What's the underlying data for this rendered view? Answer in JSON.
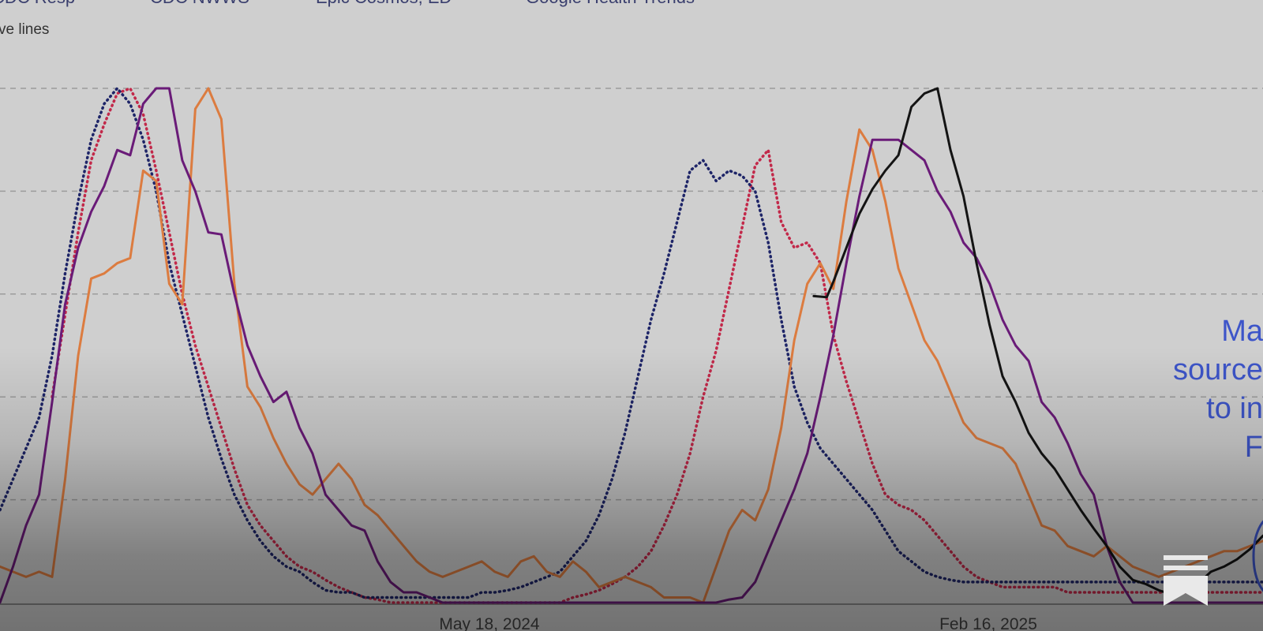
{
  "chart_data": {
    "type": "line",
    "legend": [
      "CDC Resp",
      "CDC NWWS",
      "Epic Cosmos, ED",
      "Google Health Trends"
    ],
    "subnote": "ve lines",
    "x_tick_labels": [
      "May 18, 2024",
      "Feb 16, 2025"
    ],
    "y_gridlines": [
      0,
      1,
      2,
      3,
      4,
      5
    ],
    "ylim": [
      0,
      5
    ],
    "xlim": [
      0,
      97
    ],
    "grid": true,
    "annotation_lines": [
      "Ma",
      "source",
      "to in",
      "F"
    ],
    "colors": {
      "black": "#141414",
      "purple": "#6a1b78",
      "orange": "#dc7c40",
      "dotted_red": "#c2294a",
      "dotted_navy": "#1e2568",
      "annotation": "#3d55c9"
    },
    "series": [
      {
        "color": "black",
        "style": "solid",
        "x": [
          62.5,
          63.5,
          64,
          65,
          66,
          67,
          68,
          69,
          70,
          71,
          72,
          73,
          74,
          75,
          76,
          77,
          78,
          79,
          80,
          81,
          82,
          83,
          84,
          85,
          86,
          87,
          88,
          89,
          90,
          91,
          92,
          93,
          94,
          95,
          96,
          97
        ],
        "y": [
          2.98,
          2.97,
          3.12,
          3.45,
          3.78,
          4.02,
          4.2,
          4.35,
          4.82,
          4.95,
          5.0,
          4.4,
          3.95,
          3.3,
          2.7,
          2.2,
          1.95,
          1.65,
          1.45,
          1.3,
          1.1,
          0.9,
          0.72,
          0.55,
          0.35,
          0.22,
          0.18,
          0.12,
          0.08,
          0.12,
          0.18,
          0.3,
          0.35,
          0.42,
          0.52,
          0.65
        ]
      },
      {
        "color": "purple",
        "style": "solid",
        "x": [
          0,
          1,
          2,
          3,
          4,
          5,
          6,
          7,
          8,
          9,
          10,
          11,
          12,
          13,
          14,
          15,
          16,
          17,
          18,
          19,
          20,
          21,
          22,
          23,
          24,
          25,
          26,
          27,
          28,
          29,
          30,
          31,
          32,
          33,
          34,
          35,
          36,
          37,
          38,
          39,
          40,
          41,
          42,
          43,
          44,
          45,
          46,
          47,
          48,
          49,
          50,
          51,
          52,
          53,
          54,
          55,
          56,
          57,
          58,
          59,
          60,
          61,
          62,
          63,
          64,
          65,
          66,
          67,
          68,
          69,
          70,
          71,
          72,
          73,
          74,
          75,
          76,
          77,
          78,
          79,
          80,
          81,
          82,
          83,
          84,
          85,
          86,
          87,
          88,
          89,
          90,
          91,
          92,
          93,
          94,
          95,
          96,
          97
        ],
        "y": [
          0,
          0.35,
          0.75,
          1.05,
          1.95,
          2.9,
          3.45,
          3.8,
          4.05,
          4.4,
          4.35,
          4.85,
          5.0,
          5.0,
          4.3,
          4.0,
          3.6,
          3.58,
          3.0,
          2.5,
          2.2,
          1.95,
          2.05,
          1.7,
          1.45,
          1.05,
          0.9,
          0.75,
          0.7,
          0.4,
          0.2,
          0.1,
          0.1,
          0.05,
          0,
          0,
          0,
          0,
          0,
          0,
          0,
          0,
          0,
          0,
          0,
          0,
          0,
          0,
          0,
          0,
          0,
          0,
          0,
          0,
          0,
          0,
          0.03,
          0.05,
          0.2,
          0.5,
          0.8,
          1.1,
          1.45,
          2.0,
          2.6,
          3.3,
          3.95,
          4.5,
          4.5,
          4.5,
          4.4,
          4.3,
          4.0,
          3.8,
          3.5,
          3.35,
          3.1,
          2.75,
          2.5,
          2.35,
          1.95,
          1.8,
          1.55,
          1.25,
          1.05,
          0.55,
          0.2,
          0,
          0,
          0,
          0,
          0,
          0,
          0,
          0,
          0,
          0,
          0
        ]
      },
      {
        "color": "orange",
        "style": "solid",
        "x": [
          0,
          1,
          2,
          3,
          4,
          5,
          6,
          7,
          8,
          9,
          10,
          11,
          12,
          13,
          14,
          15,
          16,
          17,
          18,
          19,
          20,
          21,
          22,
          23,
          24,
          25,
          26,
          27,
          28,
          29,
          30,
          31,
          32,
          33,
          34,
          35,
          36,
          37,
          38,
          39,
          40,
          41,
          42,
          43,
          44,
          45,
          46,
          47,
          48,
          49,
          50,
          51,
          52,
          53,
          54,
          55,
          56,
          57,
          58,
          59,
          60,
          61,
          62,
          63,
          64,
          65,
          66,
          67,
          68,
          69,
          70,
          71,
          72,
          73,
          74,
          75,
          76,
          77,
          78,
          79,
          80,
          81,
          82,
          83,
          84,
          85,
          86,
          87,
          88,
          89,
          90,
          91,
          92,
          93,
          94,
          95,
          96,
          97
        ],
        "y": [
          0.35,
          0.3,
          0.25,
          0.3,
          0.25,
          1.2,
          2.4,
          3.15,
          3.2,
          3.3,
          3.35,
          4.2,
          4.1,
          3.1,
          2.9,
          4.8,
          5.0,
          4.7,
          3.1,
          2.1,
          1.9,
          1.6,
          1.35,
          1.15,
          1.05,
          1.2,
          1.35,
          1.2,
          0.95,
          0.85,
          0.7,
          0.55,
          0.4,
          0.3,
          0.25,
          0.3,
          0.35,
          0.4,
          0.3,
          0.25,
          0.4,
          0.45,
          0.3,
          0.25,
          0.4,
          0.3,
          0.15,
          0.2,
          0.25,
          0.2,
          0.15,
          0.05,
          0.05,
          0.05,
          0,
          0.35,
          0.7,
          0.9,
          0.8,
          1.1,
          1.7,
          2.55,
          3.1,
          3.3,
          3.05,
          3.9,
          4.6,
          4.4,
          3.9,
          3.25,
          2.9,
          2.55,
          2.35,
          2.05,
          1.75,
          1.6,
          1.55,
          1.5,
          1.35,
          1.05,
          0.75,
          0.7,
          0.55,
          0.5,
          0.45,
          0.55,
          0.45,
          0.35,
          0.3,
          0.25,
          0.3,
          0.35,
          0.4,
          0.45,
          0.5,
          0.5,
          0.55,
          0.6
        ]
      },
      {
        "color": "dotted_red",
        "style": "dotted",
        "x": [
          4,
          5,
          6,
          7,
          8,
          9,
          10,
          11,
          12,
          13,
          14,
          15,
          16,
          17,
          18,
          19,
          20,
          21,
          22,
          23,
          24,
          25,
          26,
          27,
          28,
          29,
          30,
          31,
          32,
          33,
          34,
          35,
          36,
          37,
          38,
          39,
          40,
          41,
          42,
          43,
          44,
          45,
          46,
          47,
          48,
          49,
          50,
          51,
          52,
          53,
          54,
          55,
          56,
          57,
          58,
          59,
          60,
          61,
          62,
          63,
          64,
          65,
          66,
          67,
          68,
          69,
          70,
          71,
          72,
          73,
          74,
          75,
          76,
          77,
          78,
          79,
          80,
          81,
          82,
          83,
          84,
          85,
          86,
          87,
          88,
          89,
          90,
          91,
          92,
          93,
          94,
          95,
          96,
          97
        ],
        "y": [
          2.0,
          2.8,
          3.6,
          4.3,
          4.65,
          4.95,
          5.0,
          4.75,
          4.2,
          3.6,
          3.0,
          2.5,
          2.1,
          1.7,
          1.3,
          0.95,
          0.75,
          0.6,
          0.45,
          0.35,
          0.3,
          0.22,
          0.15,
          0.1,
          0.05,
          0.03,
          0,
          0,
          0,
          0,
          0,
          0,
          0,
          0,
          0,
          0,
          0,
          0,
          0,
          0,
          0.05,
          0.08,
          0.12,
          0.18,
          0.25,
          0.35,
          0.5,
          0.75,
          1.05,
          1.45,
          2.0,
          2.45,
          3.05,
          3.65,
          4.25,
          4.4,
          3.7,
          3.45,
          3.5,
          3.3,
          2.6,
          2.15,
          1.75,
          1.35,
          1.05,
          0.95,
          0.9,
          0.8,
          0.65,
          0.5,
          0.35,
          0.25,
          0.2,
          0.15,
          0.15,
          0.15,
          0.15,
          0.15,
          0.1,
          0.1,
          0.1,
          0.1,
          0.1,
          0.1,
          0.1,
          0.1,
          0.1,
          0.1,
          0.1,
          0.1,
          0.1,
          0.1,
          0.1,
          0.1
        ]
      },
      {
        "color": "dotted_navy",
        "style": "dotted",
        "x": [
          0,
          1,
          2,
          3,
          4,
          5,
          6,
          7,
          8,
          9,
          10,
          11,
          12,
          13,
          14,
          15,
          16,
          17,
          18,
          19,
          20,
          21,
          22,
          23,
          24,
          25,
          26,
          27,
          28,
          29,
          30,
          31,
          32,
          33,
          34,
          35,
          36,
          37,
          38,
          39,
          40,
          41,
          42,
          43,
          44,
          45,
          46,
          47,
          48,
          49,
          50,
          51,
          52,
          53,
          54,
          55,
          56,
          57,
          58,
          59,
          60,
          61,
          62,
          63,
          64,
          65,
          66,
          67,
          68,
          69,
          70,
          71,
          72,
          73,
          74,
          75,
          76,
          77,
          78,
          79,
          80,
          81,
          82,
          83,
          84,
          85,
          86,
          87,
          88,
          89,
          90,
          91,
          92,
          93,
          94,
          95,
          96,
          97
        ],
        "y": [
          0.9,
          1.2,
          1.5,
          1.8,
          2.4,
          3.2,
          3.9,
          4.5,
          4.85,
          5.0,
          4.85,
          4.5,
          4.0,
          3.3,
          2.8,
          2.3,
          1.8,
          1.4,
          1.05,
          0.8,
          0.6,
          0.45,
          0.35,
          0.3,
          0.2,
          0.12,
          0.1,
          0.1,
          0.05,
          0.05,
          0.05,
          0.05,
          0.05,
          0.05,
          0.05,
          0.05,
          0.05,
          0.1,
          0.1,
          0.12,
          0.15,
          0.2,
          0.25,
          0.3,
          0.45,
          0.6,
          0.85,
          1.2,
          1.65,
          2.2,
          2.75,
          3.2,
          3.7,
          4.2,
          4.3,
          4.1,
          4.2,
          4.15,
          4.0,
          3.5,
          2.75,
          2.1,
          1.75,
          1.5,
          1.35,
          1.2,
          1.05,
          0.9,
          0.7,
          0.5,
          0.4,
          0.3,
          0.25,
          0.22,
          0.2,
          0.2,
          0.2,
          0.2,
          0.2,
          0.2,
          0.2,
          0.2,
          0.2,
          0.2,
          0.2,
          0.2,
          0.2,
          0.2,
          0.2,
          0.2,
          0.2,
          0.2,
          0.2,
          0.2,
          0.2,
          0.2,
          0.2,
          0.2
        ]
      }
    ]
  }
}
